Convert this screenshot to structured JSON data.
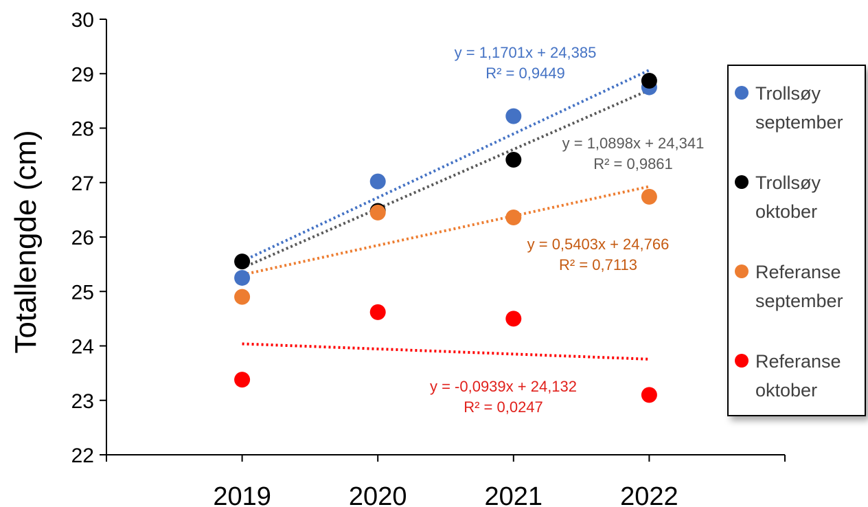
{
  "chart_data": {
    "type": "scatter",
    "title": "",
    "xlabel": "",
    "ylabel": "Totallengde (cm)",
    "x_categories": [
      "2019",
      "2020",
      "2021",
      "2022"
    ],
    "ylim": [
      22,
      30
    ],
    "yticks": [
      "22",
      "23",
      "24",
      "25",
      "26",
      "27",
      "28",
      "29",
      "30"
    ],
    "grid": false,
    "legend_position": "right",
    "series": [
      {
        "name_lines": [
          "Trollsøy",
          "september"
        ],
        "color": "#4472c4",
        "values": [
          25.25,
          27.02,
          28.22,
          28.75
        ],
        "trendline": {
          "slope": 1.1701,
          "intercept": 24.385,
          "label_lines": [
            "y = 1,1701x + 24,385",
            "R² = 0,9449"
          ]
        }
      },
      {
        "name_lines": [
          "Trollsøy",
          "oktober"
        ],
        "color": "#000000",
        "values": [
          25.55,
          26.48,
          27.42,
          28.87
        ],
        "trendline": {
          "slope": 1.0898,
          "intercept": 24.341,
          "label_lines": [
            "y = 1,0898x + 24,341",
            "R² = 0,9861"
          ],
          "label_color": "#595959",
          "line_color": "#595959"
        }
      },
      {
        "name_lines": [
          "Referanse",
          "september"
        ],
        "color": "#ed7d31",
        "values": [
          24.9,
          26.45,
          26.36,
          26.74
        ],
        "trendline": {
          "slope": 0.5403,
          "intercept": 24.766,
          "label_lines": [
            "y = 0,5403x + 24,766",
            "R² = 0,7113"
          ],
          "label_color": "#c55a11"
        }
      },
      {
        "name_lines": [
          "Referanse",
          "oktober"
        ],
        "color": "#ff0000",
        "values": [
          23.38,
          24.62,
          24.5,
          23.1
        ],
        "trendline": {
          "slope": -0.0939,
          "intercept": 24.132,
          "label_lines": [
            "y = -0,0939x + 24,132",
            "R² = 0,0247"
          ],
          "label_color": "#e0201b"
        }
      }
    ]
  }
}
